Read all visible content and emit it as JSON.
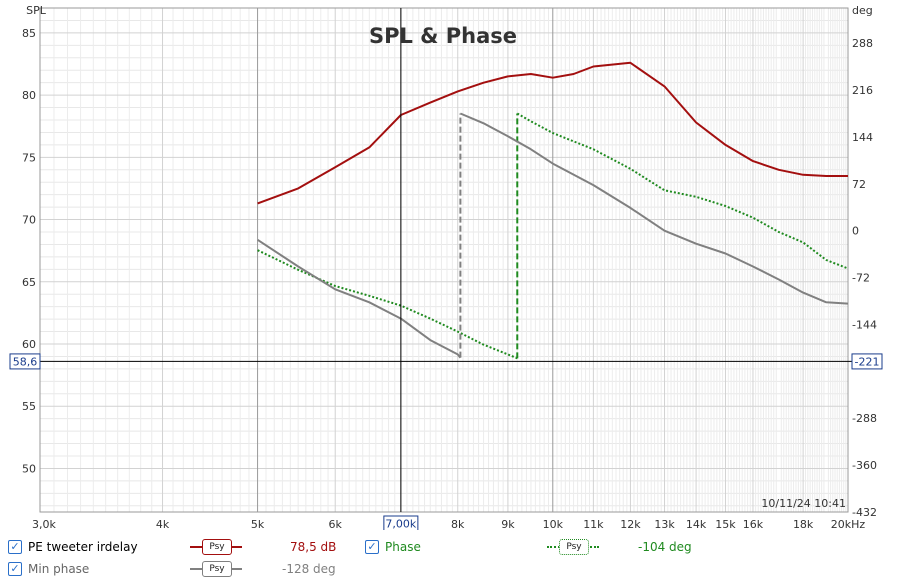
{
  "chart_data": {
    "type": "line",
    "title": "SPL & Phase",
    "ylabel_left": "SPL",
    "ylabel_right": "deg",
    "xlabel_unit": "kHz",
    "x_scale": "log",
    "xlim": [
      3000,
      20000
    ],
    "ylim_left": [
      46.5,
      87
    ],
    "ylim_right": [
      -432,
      342
    ],
    "x_ticks": [
      {
        "v": 3000,
        "label": "3,0k"
      },
      {
        "v": 4000,
        "label": "4k"
      },
      {
        "v": 5000,
        "label": "5k"
      },
      {
        "v": 6000,
        "label": "6k"
      },
      {
        "v": 7000,
        "label": "7,00k"
      },
      {
        "v": 8000,
        "label": "8k"
      },
      {
        "v": 9000,
        "label": "9k"
      },
      {
        "v": 10000,
        "label": "10k"
      },
      {
        "v": 11000,
        "label": "11k"
      },
      {
        "v": 12000,
        "label": "12k"
      },
      {
        "v": 13000,
        "label": "13k"
      },
      {
        "v": 14000,
        "label": "14k"
      },
      {
        "v": 15000,
        "label": "15k"
      },
      {
        "v": 16000,
        "label": "16k"
      },
      {
        "v": 18000,
        "label": "18k"
      },
      {
        "v": 20000,
        "label": "20kHz"
      }
    ],
    "y_ticks_left": [
      50,
      55,
      60,
      65,
      70,
      75,
      80,
      85
    ],
    "y_ticks_right": [
      -432,
      -360,
      -288,
      -144,
      -72,
      0,
      72,
      144,
      216,
      288
    ],
    "cursor": {
      "x": 7000,
      "x_label": "7,00k",
      "y_left": 58.6,
      "y_left_label": "58,6",
      "y_right_label": "-221"
    },
    "timestamp": "10/11/24 10:41",
    "series": [
      {
        "name": "PE tweeter irdelay",
        "axis": "left",
        "color": "#a30f0f",
        "style": "solid",
        "x": [
          5000,
          5500,
          6000,
          6500,
          7000,
          7500,
          8000,
          8500,
          9000,
          9500,
          10000,
          10500,
          11000,
          12000,
          13000,
          14000,
          15000,
          16000,
          17000,
          18000,
          19000,
          20000
        ],
        "y": [
          71.3,
          72.5,
          74.2,
          75.8,
          78.4,
          79.4,
          80.3,
          81.0,
          81.5,
          81.7,
          81.4,
          81.7,
          82.3,
          82.6,
          80.7,
          77.8,
          76.0,
          74.7,
          74.0,
          73.6,
          73.5,
          73.5
        ]
      },
      {
        "name": "Phase",
        "axis": "right",
        "color": "#1f8a1f",
        "style": "dotted",
        "x": [
          5000,
          5500,
          6000,
          6500,
          7000,
          7500,
          8000,
          8500,
          9000,
          9200,
          9200,
          9500,
          10000,
          11000,
          12000,
          13000,
          14000,
          15000,
          16000,
          17000,
          18000,
          19000,
          20000
        ],
        "y": [
          -30,
          -60,
          -85,
          -100,
          -115,
          -135,
          -155,
          -175,
          -190,
          -196,
          180,
          168,
          150,
          125,
          95,
          62,
          52,
          38,
          20,
          -2,
          -18,
          -45,
          -58
        ]
      },
      {
        "name": "Min phase",
        "axis": "right",
        "color": "#808080",
        "style": "solid",
        "x": [
          5000,
          5500,
          6000,
          6500,
          7000,
          7500,
          8000,
          8050,
          8050,
          8500,
          9000,
          9500,
          10000,
          11000,
          12000,
          13000,
          14000,
          15000,
          16000,
          17000,
          18000,
          19000,
          20000
        ],
        "y": [
          -14,
          -55,
          -90,
          -110,
          -135,
          -168,
          -190,
          -195,
          180,
          165,
          145,
          125,
          103,
          70,
          35,
          0,
          -20,
          -35,
          -55,
          -75,
          -95,
          -110,
          -112
        ]
      }
    ]
  },
  "legend": [
    {
      "name": "PE tweeter irdelay",
      "badge": "Psy",
      "value": "78,5 dB",
      "color": "#a30f0f"
    },
    {
      "name": "Phase",
      "badge": "Psy",
      "value": "-104 deg",
      "color": "#1f8a1f"
    },
    {
      "name": "Min phase",
      "badge": "Psy",
      "value": "-128 deg",
      "color": "#808080"
    }
  ]
}
